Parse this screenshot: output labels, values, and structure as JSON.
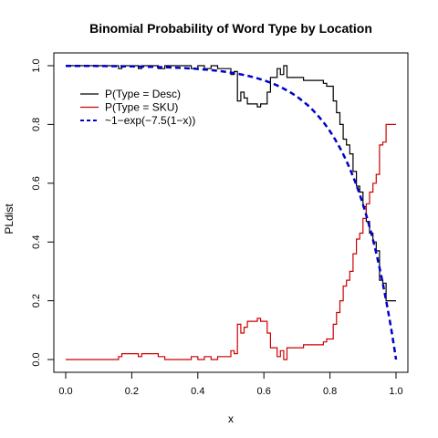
{
  "chart_data": {
    "type": "line",
    "title": "Binomial Probability of Word Type by Location",
    "xlabel": "x",
    "ylabel": "PLdist",
    "xlim": [
      0,
      1
    ],
    "ylim": [
      0,
      1
    ],
    "xticks": [
      "0.0",
      "0.2",
      "0.4",
      "0.6",
      "0.8",
      "1.0"
    ],
    "yticks": [
      "0.0",
      "0.2",
      "0.4",
      "0.6",
      "0.8",
      "1.0"
    ],
    "legend_position": "top-left",
    "series": [
      {
        "name": "P(Type = Desc)",
        "color": "#000000",
        "style": "step",
        "x": [
          0.0,
          0.16,
          0.17,
          0.22,
          0.23,
          0.28,
          0.3,
          0.38,
          0.4,
          0.42,
          0.44,
          0.46,
          0.48,
          0.5,
          0.51,
          0.52,
          0.53,
          0.54,
          0.55,
          0.56,
          0.57,
          0.58,
          0.59,
          0.6,
          0.61,
          0.62,
          0.63,
          0.64,
          0.65,
          0.66,
          0.67,
          0.7,
          0.72,
          0.74,
          0.76,
          0.78,
          0.79,
          0.8,
          0.81,
          0.82,
          0.83,
          0.84,
          0.85,
          0.86,
          0.87,
          0.88,
          0.89,
          0.9,
          0.91,
          0.92,
          0.93,
          0.94,
          0.95,
          0.96,
          0.97,
          0.98,
          1.0
        ],
        "y": [
          1.0,
          0.99,
          1.0,
          0.99,
          1.0,
          0.99,
          1.0,
          0.99,
          1.0,
          0.99,
          1.0,
          0.99,
          0.99,
          0.97,
          0.98,
          0.88,
          0.91,
          0.89,
          0.87,
          0.87,
          0.87,
          0.86,
          0.87,
          0.87,
          0.91,
          0.96,
          0.96,
          0.99,
          0.97,
          1.0,
          0.96,
          0.96,
          0.95,
          0.95,
          0.95,
          0.94,
          0.93,
          0.93,
          0.88,
          0.84,
          0.8,
          0.75,
          0.73,
          0.7,
          0.64,
          0.59,
          0.57,
          0.52,
          0.47,
          0.43,
          0.4,
          0.37,
          0.27,
          0.26,
          0.2,
          0.2,
          0.2
        ]
      },
      {
        "name": "P(Type = SKU)",
        "color": "#cc0000",
        "style": "step",
        "x": [
          0.0,
          0.16,
          0.17,
          0.22,
          0.23,
          0.28,
          0.3,
          0.38,
          0.4,
          0.42,
          0.44,
          0.46,
          0.48,
          0.5,
          0.51,
          0.52,
          0.53,
          0.54,
          0.55,
          0.56,
          0.57,
          0.58,
          0.59,
          0.6,
          0.61,
          0.62,
          0.63,
          0.64,
          0.65,
          0.66,
          0.67,
          0.7,
          0.72,
          0.74,
          0.76,
          0.78,
          0.79,
          0.8,
          0.81,
          0.82,
          0.83,
          0.84,
          0.85,
          0.86,
          0.87,
          0.88,
          0.89,
          0.9,
          0.91,
          0.92,
          0.93,
          0.94,
          0.95,
          0.96,
          0.97,
          0.98,
          1.0
        ],
        "y": [
          0.0,
          0.01,
          0.02,
          0.01,
          0.02,
          0.01,
          0.0,
          0.01,
          0.0,
          0.01,
          0.0,
          0.01,
          0.01,
          0.03,
          0.02,
          0.12,
          0.09,
          0.11,
          0.13,
          0.13,
          0.13,
          0.14,
          0.13,
          0.13,
          0.09,
          0.04,
          0.04,
          0.01,
          0.03,
          0.0,
          0.04,
          0.04,
          0.05,
          0.05,
          0.05,
          0.06,
          0.07,
          0.07,
          0.12,
          0.16,
          0.2,
          0.25,
          0.27,
          0.3,
          0.36,
          0.41,
          0.43,
          0.48,
          0.53,
          0.57,
          0.6,
          0.63,
          0.73,
          0.74,
          0.8,
          0.8,
          0.8
        ]
      },
      {
        "name": "~1−exp(−7.5(1−x))",
        "color": "#0000cc",
        "style": "dashed",
        "function": "1-exp(-7.5*(1-x))",
        "x": [
          0.0,
          0.05,
          0.1,
          0.15,
          0.2,
          0.25,
          0.3,
          0.35,
          0.4,
          0.45,
          0.5,
          0.55,
          0.6,
          0.65,
          0.7,
          0.75,
          0.8,
          0.85,
          0.9,
          0.95,
          1.0
        ],
        "y": [
          1.0,
          1.0,
          1.0,
          1.0,
          1.0,
          1.0,
          0.99,
          0.99,
          0.99,
          0.98,
          0.98,
          0.97,
          0.95,
          0.93,
          0.89,
          0.85,
          0.78,
          0.68,
          0.53,
          0.31,
          0.0
        ]
      }
    ]
  }
}
